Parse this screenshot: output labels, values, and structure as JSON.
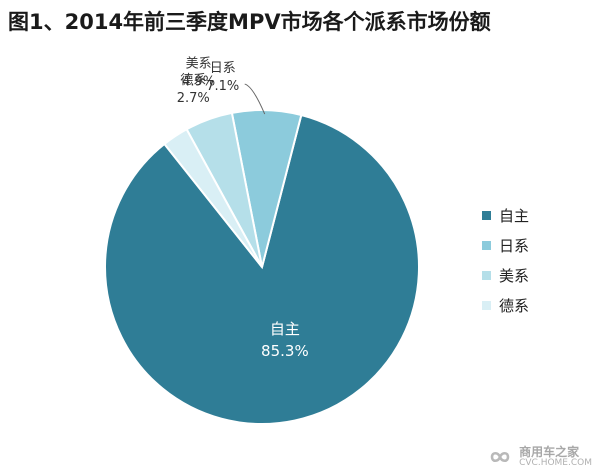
{
  "chart_data": {
    "type": "pie",
    "title": "图1、2014年前三季度MPV市场各个派系市场份额",
    "slices": [
      {
        "label": "自主",
        "value": 85.3,
        "value_label": "85.3%",
        "color": "#2f7d96"
      },
      {
        "label": "日系",
        "value": 7.1,
        "value_label": "7.1%",
        "color": "#8ccbdc"
      },
      {
        "label": "美系",
        "value": 4.9,
        "value_label": "4.9%",
        "color": "#b5dfe9"
      },
      {
        "label": "德系",
        "value": 2.7,
        "value_label": "2.7%",
        "color": "#d9eff5"
      }
    ],
    "start_angle_deg": 0,
    "direction": "counterclockwise",
    "legend_position": "right"
  },
  "watermark": {
    "text_cn": "商用车之家",
    "text_en": "CVC.HOME.COM"
  }
}
